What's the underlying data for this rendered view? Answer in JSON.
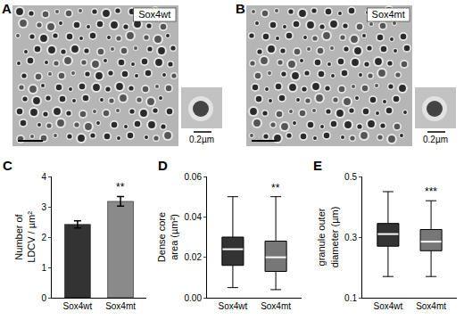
{
  "images": [
    {
      "panel": "A",
      "label": "Sox4wt",
      "scale_label": "0.2µm"
    },
    {
      "panel": "B",
      "label": "Sox4mt",
      "scale_label": "0.2µm"
    }
  ],
  "chart_data": [
    {
      "type": "bar",
      "panel": "C",
      "categories": [
        "Sox4wt",
        "Sox4mt"
      ],
      "values": [
        2.42,
        3.18
      ],
      "errors": [
        0.12,
        0.16
      ],
      "colors": [
        "#333333",
        "#8a8a8a"
      ],
      "y_label": "Number of LDCV / µm²",
      "ylim": [
        0,
        4
      ],
      "yticks": [
        0,
        1,
        2,
        3,
        4
      ],
      "annotations": [
        {
          "text": "**",
          "category": "Sox4mt"
        }
      ]
    },
    {
      "type": "box",
      "panel": "D",
      "categories": [
        "Sox4wt",
        "Sox4mt"
      ],
      "min": [
        0.005,
        0.004
      ],
      "q1": [
        0.016,
        0.013
      ],
      "median": [
        0.024,
        0.02
      ],
      "q3": [
        0.03,
        0.028
      ],
      "max": [
        0.05,
        0.05
      ],
      "colors": [
        "#333333",
        "#777777"
      ],
      "y_label": "Dense core area (µm²)",
      "ylim": [
        0,
        0.06
      ],
      "yticks": [
        {
          "value": 0,
          "label": "0.00"
        },
        {
          "value": 0.02,
          "label": "0.02"
        },
        {
          "value": 0.04,
          "label": "0.04"
        },
        {
          "value": 0.06,
          "label": "0.06"
        }
      ],
      "annotations": [
        {
          "text": "**",
          "category": "Sox4mt"
        }
      ]
    },
    {
      "type": "box",
      "panel": "E",
      "categories": [
        "Sox4wt",
        "Sox4mt"
      ],
      "min": [
        0.17,
        0.17
      ],
      "q1": [
        0.27,
        0.255
      ],
      "median": [
        0.31,
        0.285
      ],
      "q3": [
        0.345,
        0.325
      ],
      "max": [
        0.45,
        0.42
      ],
      "colors": [
        "#333333",
        "#777777"
      ],
      "y_label": "granule outer diameter (µm)",
      "ylim": [
        0.1,
        0.5
      ],
      "yticks": [
        0.1,
        0.3,
        0.5
      ],
      "annotations": [
        {
          "text": "***",
          "category": "Sox4mt"
        }
      ]
    }
  ]
}
